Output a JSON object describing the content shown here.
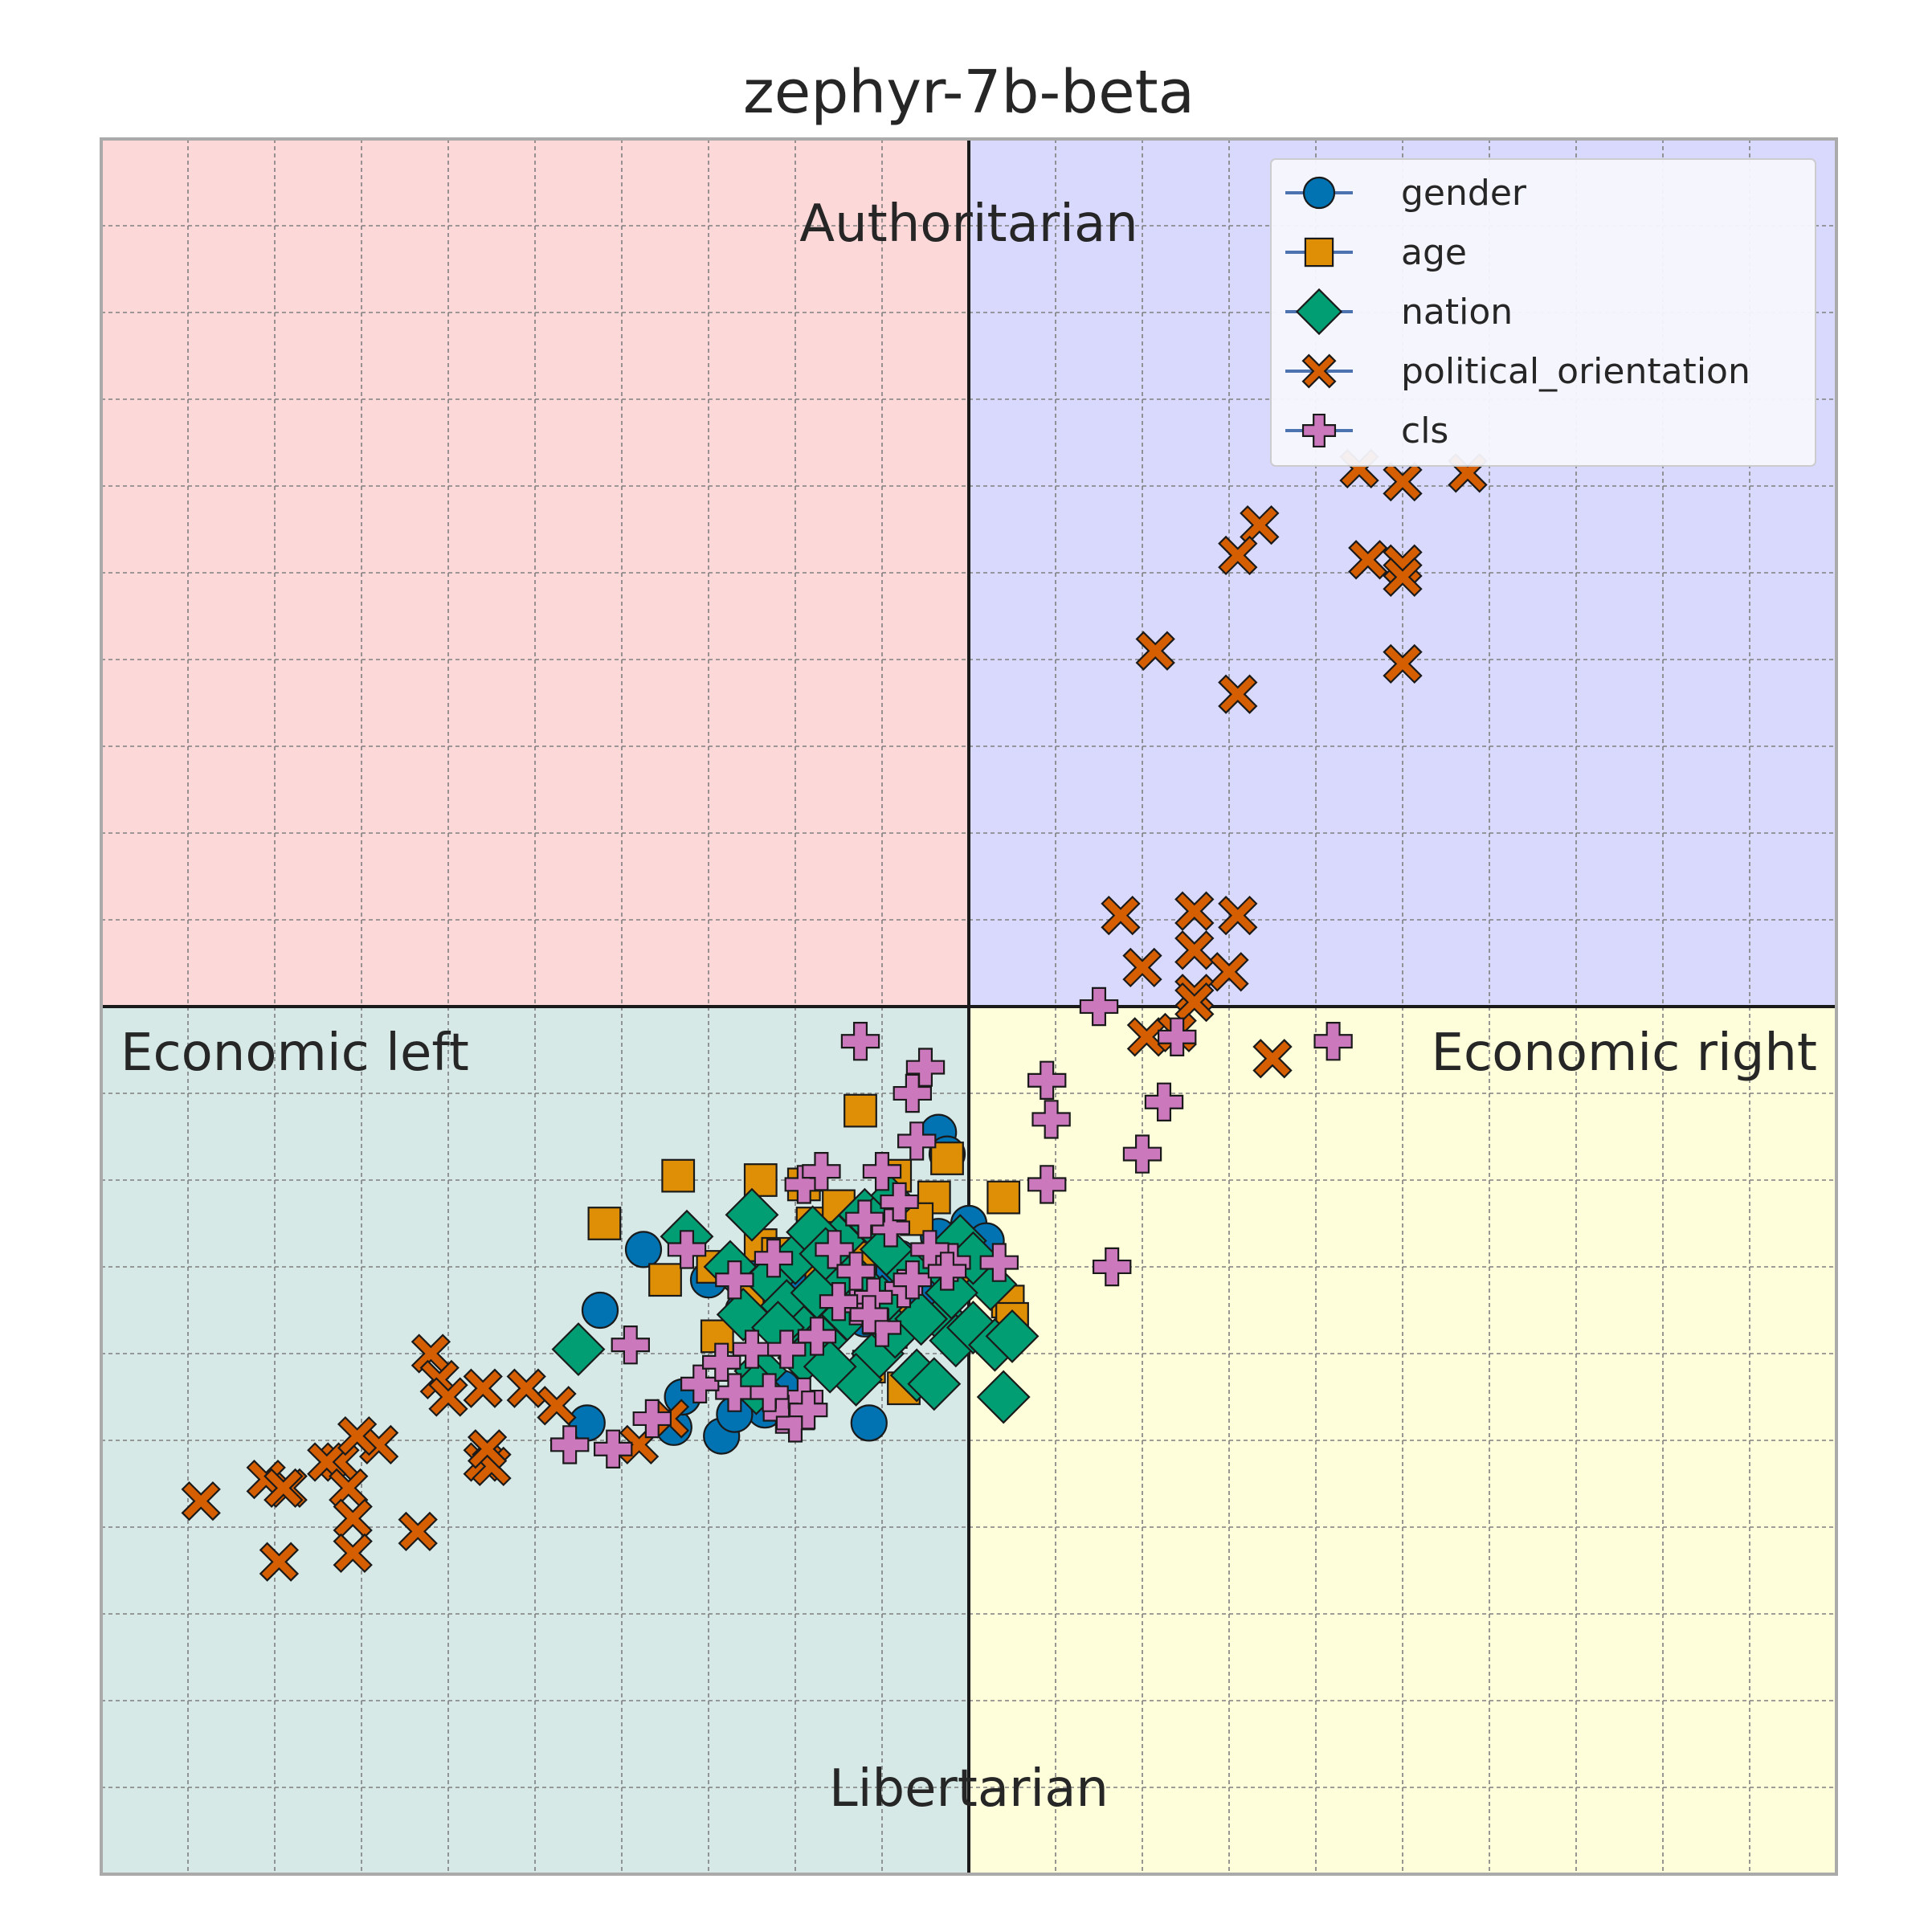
{
  "chart_data": {
    "type": "scatter",
    "title": "zephyr-7b-beta",
    "xlabel": "",
    "ylabel": "",
    "xlim": [
      -10,
      10
    ],
    "ylim": [
      -10,
      10
    ],
    "grid": true,
    "legend_placement": "top-right",
    "quadrant_labels": {
      "top": "Authoritarian",
      "bottom": "Libertarian",
      "left": "Economic left",
      "right": "Economic right"
    },
    "quadrant_colors": {
      "top_left": "#fdd8d9",
      "top_right": "#d9d9fd",
      "bottom_left": "#d7e9e7",
      "bottom_right": "#fefedb"
    },
    "series": [
      {
        "name": "gender",
        "marker": "circle",
        "color": "#0173b2",
        "points": [
          [
            -3.75,
            -2.8
          ],
          [
            -4.25,
            -3.5
          ],
          [
            -2.75,
            -3.05
          ],
          [
            -3.0,
            -3.15
          ],
          [
            -2.0,
            -3.1
          ],
          [
            -2.5,
            -3.05
          ],
          [
            -1.1,
            -3.2
          ],
          [
            -0.8,
            -3.2
          ],
          [
            -1.8,
            -3.6
          ],
          [
            -2.6,
            -3.5
          ],
          [
            -2.85,
            -4.95
          ],
          [
            -3.4,
            -4.85
          ],
          [
            -2.35,
            -4.65
          ],
          [
            -2.7,
            -4.7
          ],
          [
            -1.15,
            -4.8
          ],
          [
            -3.3,
            -4.5
          ],
          [
            -4.4,
            -4.8
          ],
          [
            -0.35,
            -1.45
          ],
          [
            -0.25,
            -1.7
          ],
          [
            0.0,
            -2.5
          ],
          [
            0.2,
            -2.7
          ],
          [
            -1.0,
            -3.1
          ],
          [
            -1.5,
            -3.3
          ],
          [
            -0.5,
            -3.3
          ],
          [
            -0.35,
            -2.65
          ],
          [
            -2.15,
            -4.4
          ],
          [
            -1.2,
            -3.6
          ],
          [
            -0.8,
            -2.9
          ]
        ]
      },
      {
        "name": "age",
        "marker": "square",
        "color": "#de8f05",
        "points": [
          [
            -1.25,
            -1.2
          ],
          [
            -3.35,
            -1.95
          ],
          [
            -4.2,
            -2.5
          ],
          [
            -2.4,
            -2.0
          ],
          [
            -1.9,
            -2.05
          ],
          [
            -0.85,
            -1.95
          ],
          [
            -0.25,
            -1.75
          ],
          [
            0.4,
            -2.2
          ],
          [
            -1.8,
            -2.5
          ],
          [
            -2.4,
            -2.75
          ],
          [
            -3.5,
            -3.15
          ],
          [
            -2.95,
            -3.0
          ],
          [
            -2.2,
            -2.85
          ],
          [
            -2.9,
            -3.8
          ],
          [
            -2.55,
            -3.3
          ],
          [
            -2.0,
            -3.85
          ],
          [
            -1.4,
            -3.35
          ],
          [
            -0.9,
            -3.4
          ],
          [
            -0.75,
            -4.4
          ],
          [
            0.45,
            -3.4
          ],
          [
            0.5,
            -3.6
          ],
          [
            -0.15,
            -3.15
          ],
          [
            -0.4,
            -2.2
          ],
          [
            -1.5,
            -2.3
          ],
          [
            -1.7,
            -3.05
          ],
          [
            -1.15,
            -4.15
          ],
          [
            -0.9,
            -3.75
          ],
          [
            -1.25,
            -2.9
          ],
          [
            -0.6,
            -2.45
          ]
        ]
      },
      {
        "name": "nation",
        "marker": "diamond",
        "color": "#029e73",
        "points": [
          [
            -4.5,
            -3.95
          ],
          [
            -3.25,
            -2.65
          ],
          [
            -2.6,
            -3.55
          ],
          [
            -2.5,
            -2.4
          ],
          [
            -2.3,
            -3.15
          ],
          [
            -2.1,
            -3.45
          ],
          [
            -2.0,
            -2.9
          ],
          [
            -1.9,
            -3.75
          ],
          [
            -1.75,
            -3.3
          ],
          [
            -1.5,
            -2.7
          ],
          [
            -1.4,
            -3.55
          ],
          [
            -1.25,
            -3.2
          ],
          [
            -1.05,
            -4.0
          ],
          [
            -0.9,
            -2.25
          ],
          [
            -0.85,
            -3.75
          ],
          [
            -0.6,
            -4.25
          ],
          [
            -0.4,
            -4.35
          ],
          [
            -0.3,
            -3.6
          ],
          [
            -0.15,
            -3.85
          ],
          [
            0.05,
            -3.7
          ],
          [
            0.25,
            -3.2
          ],
          [
            0.3,
            -3.9
          ],
          [
            0.5,
            -3.8
          ],
          [
            0.4,
            -4.5
          ],
          [
            -1.2,
            -2.4
          ],
          [
            -0.35,
            -2.95
          ],
          [
            -1.7,
            -3.85
          ],
          [
            -1.1,
            -2.5
          ],
          [
            -2.4,
            -4.2
          ],
          [
            -1.9,
            -4.05
          ],
          [
            -0.7,
            -3.05
          ],
          [
            -1.45,
            -3.05
          ],
          [
            -2.75,
            -3.0
          ],
          [
            -0.1,
            -2.7
          ],
          [
            -1.8,
            -2.6
          ],
          [
            -1.0,
            -3.4
          ],
          [
            -2.2,
            -3.7
          ],
          [
            -0.55,
            -3.6
          ],
          [
            -1.3,
            -4.3
          ],
          [
            0.05,
            -2.9
          ],
          [
            -1.6,
            -4.15
          ],
          [
            -2.45,
            -4.4
          ],
          [
            -0.2,
            -3.3
          ],
          [
            -0.95,
            -2.8
          ],
          [
            -1.65,
            -2.85
          ]
        ]
      },
      {
        "name": "political_orientation",
        "marker": "x",
        "color": "#d55e00",
        "points": [
          [
            5.75,
            6.15
          ],
          [
            5.0,
            6.05
          ],
          [
            4.5,
            6.2
          ],
          [
            5.0,
            5.1
          ],
          [
            5.0,
            4.95
          ],
          [
            4.6,
            5.15
          ],
          [
            3.35,
            5.55
          ],
          [
            3.1,
            5.2
          ],
          [
            2.15,
            4.1
          ],
          [
            3.1,
            3.6
          ],
          [
            5.0,
            3.95
          ],
          [
            1.75,
            1.05
          ],
          [
            2.6,
            1.1
          ],
          [
            3.1,
            1.05
          ],
          [
            2.6,
            0.65
          ],
          [
            2.0,
            0.45
          ],
          [
            3.0,
            0.4
          ],
          [
            2.6,
            0.15
          ],
          [
            2.6,
            0.05
          ],
          [
            2.05,
            -0.35
          ],
          [
            2.4,
            -0.3
          ],
          [
            3.5,
            -0.6
          ],
          [
            -6.2,
            -4.0
          ],
          [
            -6.1,
            -4.3
          ],
          [
            -6.0,
            -4.5
          ],
          [
            -5.1,
            -4.4
          ],
          [
            -4.75,
            -4.6
          ],
          [
            -5.6,
            -4.4
          ],
          [
            -3.8,
            -5.05
          ],
          [
            -3.45,
            -4.75
          ],
          [
            -5.6,
            -5.25
          ],
          [
            -7.25,
            -5.25
          ],
          [
            -7.4,
            -5.25
          ],
          [
            -7.85,
            -5.55
          ],
          [
            -8.1,
            -5.45
          ],
          [
            -7.9,
            -5.55
          ],
          [
            -7.15,
            -5.55
          ],
          [
            -7.1,
            -5.9
          ],
          [
            -6.35,
            -6.05
          ],
          [
            -5.5,
            -5.3
          ],
          [
            -8.85,
            -5.7
          ],
          [
            -7.95,
            -6.4
          ],
          [
            -7.1,
            -6.3
          ],
          [
            -6.8,
            -5.05
          ],
          [
            -7.05,
            -4.95
          ],
          [
            -5.55,
            -5.1
          ]
        ]
      },
      {
        "name": "cls",
        "marker": "plus",
        "color": "#cc78bc",
        "points": [
          [
            -1.25,
            -0.4
          ],
          [
            -0.5,
            -0.7
          ],
          [
            -0.65,
            -1.0
          ],
          [
            0.9,
            -0.85
          ],
          [
            0.95,
            -1.3
          ],
          [
            1.5,
            0.0
          ],
          [
            2.4,
            -0.35
          ],
          [
            4.2,
            -0.4
          ],
          [
            2.25,
            -1.1
          ],
          [
            2.0,
            -1.7
          ],
          [
            0.9,
            -2.05
          ],
          [
            1.65,
            -3.0
          ],
          [
            -1.9,
            -2.05
          ],
          [
            -1.7,
            -1.9
          ],
          [
            -1.0,
            -1.9
          ],
          [
            -0.9,
            -2.55
          ],
          [
            -1.55,
            -2.8
          ],
          [
            -2.25,
            -2.9
          ],
          [
            -2.7,
            -3.15
          ],
          [
            -3.25,
            -2.8
          ],
          [
            -0.8,
            -2.25
          ],
          [
            -0.2,
            -2.95
          ],
          [
            -0.75,
            -3.25
          ],
          [
            -1.3,
            -3.45
          ],
          [
            -1.1,
            -3.35
          ],
          [
            -1.75,
            -3.8
          ],
          [
            -2.5,
            -3.95
          ],
          [
            -3.9,
            -3.9
          ],
          [
            -2.7,
            -4.45
          ],
          [
            -3.1,
            -4.35
          ],
          [
            -3.65,
            -4.75
          ],
          [
            -4.6,
            -5.05
          ],
          [
            -4.1,
            -5.1
          ],
          [
            -1.9,
            -4.5
          ],
          [
            -2.15,
            -4.7
          ],
          [
            -2.0,
            -4.8
          ],
          [
            -1.2,
            -2.45
          ],
          [
            -0.45,
            -2.8
          ],
          [
            -1.3,
            -3.05
          ],
          [
            -1.0,
            -3.7
          ],
          [
            -1.15,
            -3.55
          ],
          [
            -0.65,
            -3.15
          ],
          [
            -2.85,
            -4.1
          ],
          [
            -2.1,
            -3.95
          ],
          [
            -1.5,
            -3.4
          ],
          [
            -0.25,
            -3.05
          ],
          [
            0.35,
            -2.95
          ],
          [
            -1.85,
            -4.65
          ],
          [
            -2.3,
            -4.45
          ],
          [
            -0.6,
            -1.55
          ]
        ]
      }
    ]
  }
}
